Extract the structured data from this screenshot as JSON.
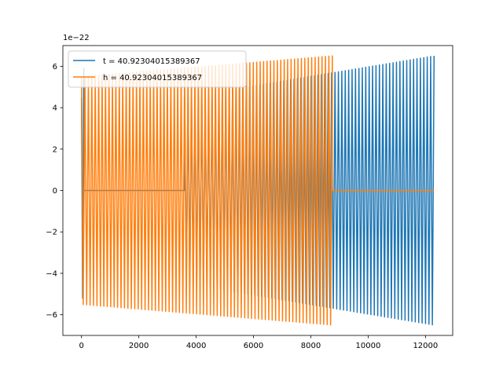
{
  "chart_data": {
    "type": "line",
    "title": "",
    "xlabel": "",
    "ylabel": "",
    "y_exponent_label": "1e−22",
    "y_scale": 1e-22,
    "xlim": [
      -650,
      12950
    ],
    "ylim": [
      -7,
      7
    ],
    "x_ticks": [
      0,
      2000,
      4000,
      6000,
      8000,
      10000,
      12000
    ],
    "x_tick_labels": [
      "0",
      "2000",
      "4000",
      "6000",
      "8000",
      "10000",
      "12000"
    ],
    "y_ticks": [
      -6,
      -4,
      -2,
      0,
      2,
      4,
      6
    ],
    "y_tick_labels": [
      "−6",
      "−4",
      "−2",
      "0",
      "2",
      "4",
      "6"
    ],
    "grid": false,
    "legend_position": "upper-left",
    "series": [
      {
        "name": "t = 40.92304015389367",
        "color": "#1f77b4",
        "segments": [
          {
            "kind": "oscillation",
            "x_start": 0,
            "x_end": 80,
            "amp_start": 4.5,
            "amp_end": 5.9,
            "cycles": 1
          },
          {
            "kind": "flat",
            "x_start": 80,
            "x_end": 3600,
            "value": 0
          },
          {
            "kind": "oscillation",
            "x_start": 3600,
            "x_end": 12300,
            "amp_start": 4.5,
            "amp_end": 6.5,
            "cycles": 73
          }
        ]
      },
      {
        "name": "h = 40.92304015389367",
        "color": "#ff7f0e",
        "segments": [
          {
            "kind": "oscillation",
            "x_start": 0,
            "x_end": 8750,
            "amp_start": 5.5,
            "amp_end": 6.5,
            "cycles": 73
          },
          {
            "kind": "flat",
            "x_start": 8750,
            "x_end": 12300,
            "value": 0
          }
        ]
      }
    ]
  }
}
